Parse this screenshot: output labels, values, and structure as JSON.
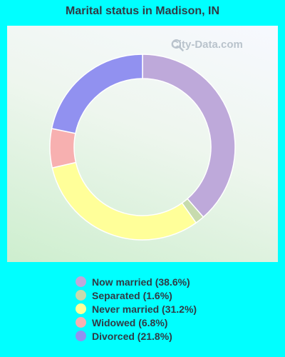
{
  "chart_data": {
    "type": "pie",
    "title": "Marital status in Madison, IN",
    "categories": [
      "Now married",
      "Separated",
      "Never married",
      "Widowed",
      "Divorced"
    ],
    "values": [
      38.6,
      1.6,
      31.2,
      6.8,
      21.8
    ],
    "labels": [
      "Now married (38.6%)",
      "Separated (1.6%)",
      "Never married (31.2%)",
      "Widowed (6.8%)",
      "Divorced (21.8%)"
    ],
    "colors": [
      "#bea9da",
      "#c7dbad",
      "#ffff99",
      "#f7b0b0",
      "#9191f0"
    ],
    "legend_position": "bottom",
    "style": "donut"
  },
  "watermark": {
    "text": "City-Data.com",
    "icon": "magnifier-icon"
  }
}
